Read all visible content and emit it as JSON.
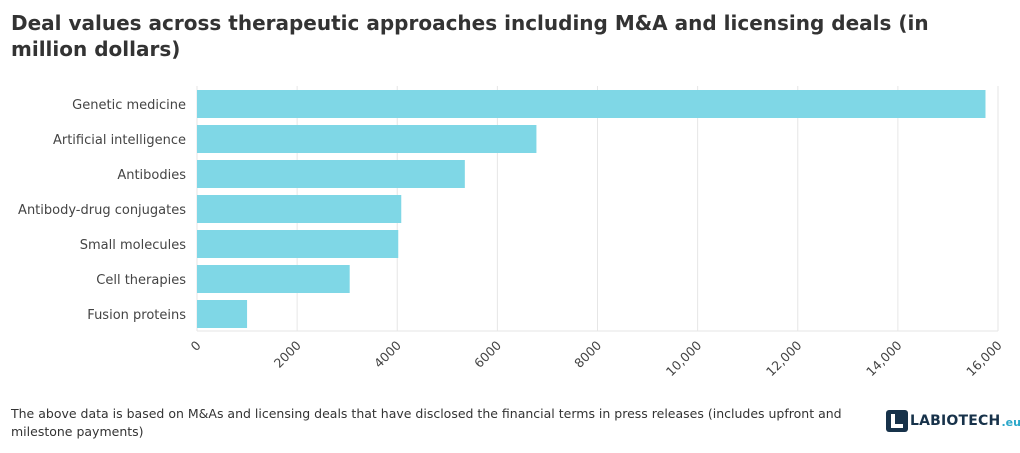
{
  "chart_data": {
    "type": "bar",
    "orientation": "horizontal",
    "title": "Deal values across therapeutic approaches including M&A and licensing deals (in million dollars)",
    "categories": [
      "Genetic medicine",
      "Artificial intelligence",
      "Antibodies",
      "Antibody-drug conjugates",
      "Small molecules",
      "Cell therapies",
      "Fusion proteins"
    ],
    "values": [
      15750,
      6780,
      5350,
      4080,
      4020,
      3050,
      1000
    ],
    "xlim": [
      0,
      16000
    ],
    "xticks": [
      0,
      2000,
      4000,
      6000,
      8000,
      10000,
      12000,
      14000,
      16000
    ],
    "xtick_labels": [
      "0",
      "2000",
      "4000",
      "6000",
      "8000",
      "10,000",
      "12,000",
      "14,000",
      "16,000"
    ],
    "grid": "vertical",
    "bar_color": "#7fd7e6"
  },
  "footnote": "The above data is based on M&As and licensing deals that have disclosed the financial terms in press releases (includes upfront and milestone payments)",
  "brand": {
    "name": "LABIOTECH",
    "tld": ".eu",
    "color": "#17324a",
    "accent": "#2aa7c9"
  }
}
